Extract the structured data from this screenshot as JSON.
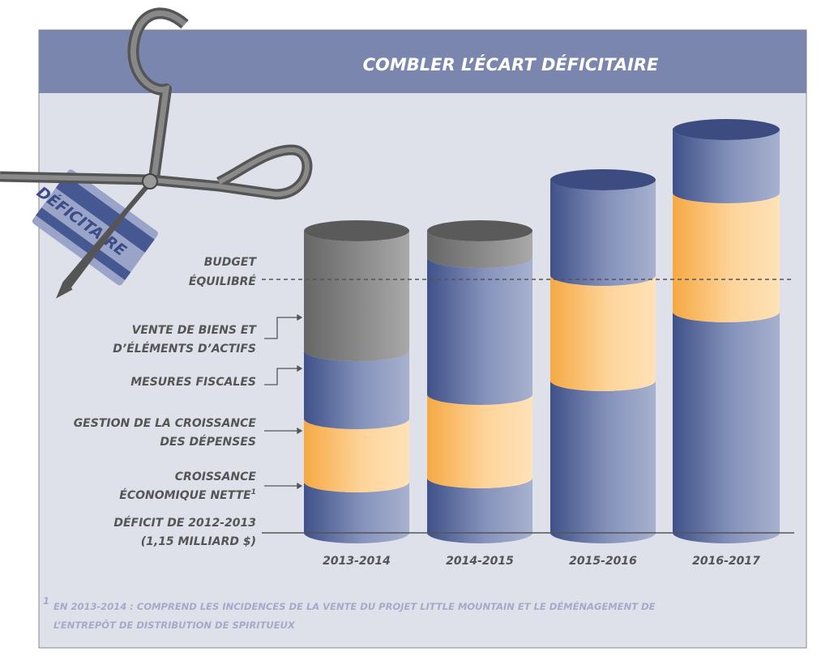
{
  "title": "COMBLER L’ÉCART DÉFICITAIRE",
  "card_label": "DÉFICITAIRE",
  "labels": {
    "budget": [
      "BUDGET",
      "ÉQUILIBRÉ"
    ],
    "vente": [
      "VENTE DE BIENS ET",
      "D’ÉLÉMENTS D’ACTIFS"
    ],
    "mesures": [
      "MESURES FISCALES"
    ],
    "gestion": [
      "GESTION DE LA CROISSANCE",
      "DES DÉPENSES"
    ],
    "croissance": [
      "CROISSANCE",
      "ÉCONOMIQUE NETTE"
    ],
    "croissance_marker": "1",
    "deficit": [
      "DÉFICIT DE 2012-2013",
      "(1,15 MILLIARD $)"
    ]
  },
  "categories": [
    "2013-2014",
    "2014-2015",
    "2015-2016",
    "2016-2017"
  ],
  "footnote": {
    "marker": "1",
    "lines": [
      "EN 2013-2014 : COMPREND LES INCIDENCES DE LA VENTE DU PROJET LITTLE MOUNTAIN ET LE DÉMÉNAGEMENT DE",
      "L’ENTREPÔT DE DISTRIBUTION DE SPIRITUEUX"
    ]
  }
}
